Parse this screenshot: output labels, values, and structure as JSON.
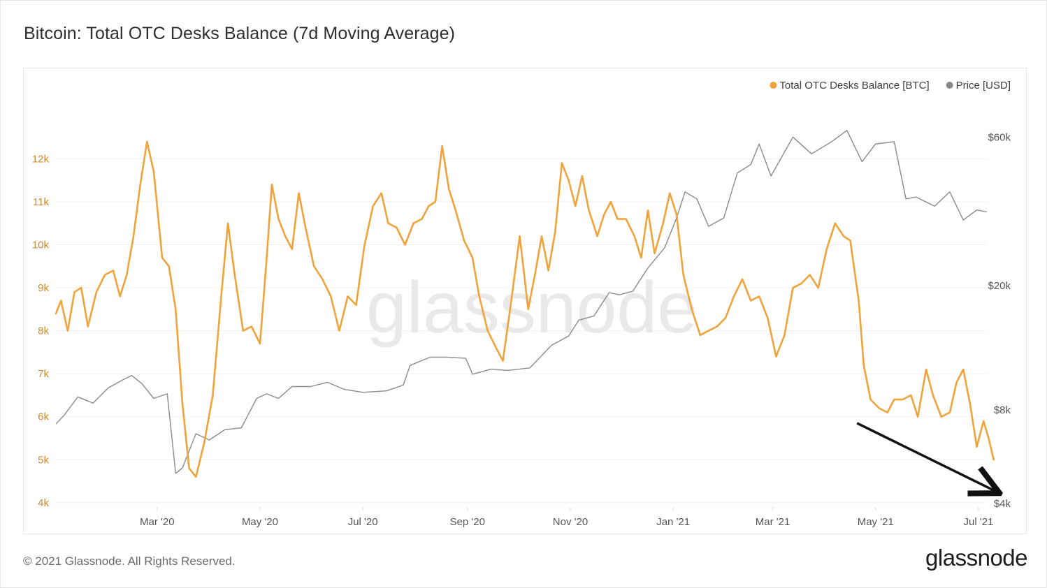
{
  "title": "Bitcoin: Total OTC Desks Balance (7d Moving Average)",
  "footer": "© 2021 Glassnode. All Rights Reserved.",
  "brand": "glassnode",
  "watermark": "glassnode",
  "colors": {
    "otc": "#f0a33a",
    "price": "#8a8a8a",
    "arrow": "#111111"
  },
  "chart_data": {
    "type": "line",
    "legend_position": "top-right",
    "grid": true,
    "x_tick_labels": [
      "Mar '20",
      "May '20",
      "Jul '20",
      "Sep '20",
      "Nov '20",
      "Jan '21",
      "Mar '21",
      "May '21",
      "Jul '21"
    ],
    "x_tick_dates": [
      "2020-03-01",
      "2020-05-01",
      "2020-07-01",
      "2020-09-01",
      "2020-11-01",
      "2021-01-01",
      "2021-03-01",
      "2021-05-01",
      "2021-07-01"
    ],
    "x_range": [
      "2020-01-01",
      "2021-07-06"
    ],
    "left_axis": {
      "ticks": [
        4000,
        5000,
        6000,
        7000,
        8000,
        9000,
        10000,
        11000,
        12000
      ],
      "tick_labels": [
        "4k",
        "5k",
        "6k",
        "7k",
        "8k",
        "9k",
        "10k",
        "11k",
        "12k"
      ],
      "range": [
        3900,
        12900
      ]
    },
    "right_axis": {
      "scale": "log",
      "ticks": [
        4000,
        8000,
        20000,
        60000
      ],
      "tick_labels": [
        "$4k",
        "$8k",
        "$20k",
        "$60k"
      ],
      "range": [
        3900,
        68000
      ]
    },
    "series": [
      {
        "name": "Total OTC Desks Balance [BTC]",
        "axis": "left",
        "points": [
          [
            "2020-01-01",
            8400
          ],
          [
            "2020-01-04",
            8700
          ],
          [
            "2020-01-08",
            8000
          ],
          [
            "2020-01-12",
            8900
          ],
          [
            "2020-01-16",
            9000
          ],
          [
            "2020-01-20",
            8100
          ],
          [
            "2020-01-25",
            8900
          ],
          [
            "2020-01-30",
            9300
          ],
          [
            "2020-02-04",
            9400
          ],
          [
            "2020-02-08",
            8800
          ],
          [
            "2020-02-12",
            9300
          ],
          [
            "2020-02-16",
            10200
          ],
          [
            "2020-02-20",
            11400
          ],
          [
            "2020-02-24",
            12400
          ],
          [
            "2020-02-28",
            11700
          ],
          [
            "2020-03-04",
            9700
          ],
          [
            "2020-03-08",
            9500
          ],
          [
            "2020-03-12",
            8500
          ],
          [
            "2020-03-16",
            6300
          ],
          [
            "2020-03-20",
            4800
          ],
          [
            "2020-03-24",
            4600
          ],
          [
            "2020-03-29",
            5400
          ],
          [
            "2020-04-03",
            6500
          ],
          [
            "2020-04-08",
            8800
          ],
          [
            "2020-04-12",
            10500
          ],
          [
            "2020-04-16",
            9300
          ],
          [
            "2020-04-21",
            8000
          ],
          [
            "2020-04-26",
            8100
          ],
          [
            "2020-05-01",
            7700
          ],
          [
            "2020-05-05",
            9700
          ],
          [
            "2020-05-08",
            11400
          ],
          [
            "2020-05-12",
            10600
          ],
          [
            "2020-05-16",
            10200
          ],
          [
            "2020-05-20",
            9900
          ],
          [
            "2020-05-24",
            11200
          ],
          [
            "2020-05-28",
            10400
          ],
          [
            "2020-06-02",
            9500
          ],
          [
            "2020-06-07",
            9200
          ],
          [
            "2020-06-12",
            8800
          ],
          [
            "2020-06-17",
            8000
          ],
          [
            "2020-06-22",
            8800
          ],
          [
            "2020-06-27",
            8600
          ],
          [
            "2020-07-02",
            10000
          ],
          [
            "2020-07-07",
            10900
          ],
          [
            "2020-07-12",
            11200
          ],
          [
            "2020-07-16",
            10500
          ],
          [
            "2020-07-21",
            10400
          ],
          [
            "2020-07-26",
            10000
          ],
          [
            "2020-07-31",
            10500
          ],
          [
            "2020-08-05",
            10600
          ],
          [
            "2020-08-09",
            10900
          ],
          [
            "2020-08-13",
            11000
          ],
          [
            "2020-08-17",
            12300
          ],
          [
            "2020-08-21",
            11300
          ],
          [
            "2020-08-25",
            10800
          ],
          [
            "2020-08-30",
            10100
          ],
          [
            "2020-09-04",
            9700
          ],
          [
            "2020-09-08",
            8800
          ],
          [
            "2020-09-13",
            8000
          ],
          [
            "2020-09-18",
            7600
          ],
          [
            "2020-09-22",
            7300
          ],
          [
            "2020-09-27",
            8700
          ],
          [
            "2020-10-02",
            10200
          ],
          [
            "2020-10-07",
            8500
          ],
          [
            "2020-10-11",
            9300
          ],
          [
            "2020-10-15",
            10200
          ],
          [
            "2020-10-19",
            9400
          ],
          [
            "2020-10-23",
            10300
          ],
          [
            "2020-10-27",
            11900
          ],
          [
            "2020-10-31",
            11500
          ],
          [
            "2020-11-04",
            10900
          ],
          [
            "2020-11-08",
            11600
          ],
          [
            "2020-11-12",
            10800
          ],
          [
            "2020-11-17",
            10200
          ],
          [
            "2020-11-21",
            10700
          ],
          [
            "2020-11-25",
            11000
          ],
          [
            "2020-11-29",
            10600
          ],
          [
            "2020-12-04",
            10600
          ],
          [
            "2020-12-09",
            10200
          ],
          [
            "2020-12-13",
            9700
          ],
          [
            "2020-12-17",
            10800
          ],
          [
            "2020-12-21",
            9800
          ],
          [
            "2020-12-26",
            10500
          ],
          [
            "2020-12-30",
            11200
          ],
          [
            "2021-01-03",
            10700
          ],
          [
            "2021-01-07",
            9300
          ],
          [
            "2021-01-12",
            8500
          ],
          [
            "2021-01-17",
            7900
          ],
          [
            "2021-01-22",
            8000
          ],
          [
            "2021-01-27",
            8100
          ],
          [
            "2021-02-01",
            8300
          ],
          [
            "2021-02-06",
            8800
          ],
          [
            "2021-02-11",
            9200
          ],
          [
            "2021-02-16",
            8700
          ],
          [
            "2021-02-21",
            8800
          ],
          [
            "2021-02-26",
            8300
          ],
          [
            "2021-03-03",
            7400
          ],
          [
            "2021-03-08",
            7900
          ],
          [
            "2021-03-13",
            9000
          ],
          [
            "2021-03-18",
            9100
          ],
          [
            "2021-03-23",
            9300
          ],
          [
            "2021-03-28",
            9000
          ],
          [
            "2021-04-02",
            9900
          ],
          [
            "2021-04-07",
            10500
          ],
          [
            "2021-04-12",
            10200
          ],
          [
            "2021-04-16",
            10100
          ],
          [
            "2021-04-21",
            8700
          ],
          [
            "2021-04-24",
            7200
          ],
          [
            "2021-04-28",
            6400
          ],
          [
            "2021-05-03",
            6200
          ],
          [
            "2021-05-08",
            6100
          ],
          [
            "2021-05-12",
            6400
          ],
          [
            "2021-05-17",
            6400
          ],
          [
            "2021-05-22",
            6500
          ],
          [
            "2021-05-26",
            6000
          ],
          [
            "2021-05-31",
            7100
          ],
          [
            "2021-06-04",
            6500
          ],
          [
            "2021-06-09",
            6000
          ],
          [
            "2021-06-14",
            6100
          ],
          [
            "2021-06-18",
            6800
          ],
          [
            "2021-06-22",
            7100
          ],
          [
            "2021-06-26",
            6300
          ],
          [
            "2021-06-30",
            5300
          ],
          [
            "2021-07-04",
            5900
          ],
          [
            "2021-07-07",
            5500
          ],
          [
            "2021-07-10",
            5000
          ]
        ]
      },
      {
        "name": "Price [USD]",
        "axis": "right",
        "points": [
          [
            "2020-01-01",
            7200
          ],
          [
            "2020-01-06",
            7700
          ],
          [
            "2020-01-14",
            8800
          ],
          [
            "2020-01-23",
            8400
          ],
          [
            "2020-02-01",
            9400
          ],
          [
            "2020-02-10",
            10000
          ],
          [
            "2020-02-15",
            10300
          ],
          [
            "2020-02-21",
            9700
          ],
          [
            "2020-02-28",
            8700
          ],
          [
            "2020-03-07",
            9000
          ],
          [
            "2020-03-12",
            5000
          ],
          [
            "2020-03-16",
            5200
          ],
          [
            "2020-03-24",
            6700
          ],
          [
            "2020-04-01",
            6400
          ],
          [
            "2020-04-10",
            6900
          ],
          [
            "2020-04-20",
            7000
          ],
          [
            "2020-04-29",
            8700
          ],
          [
            "2020-05-05",
            9000
          ],
          [
            "2020-05-12",
            8700
          ],
          [
            "2020-05-20",
            9500
          ],
          [
            "2020-05-31",
            9500
          ],
          [
            "2020-06-10",
            9800
          ],
          [
            "2020-06-20",
            9300
          ],
          [
            "2020-07-01",
            9100
          ],
          [
            "2020-07-15",
            9200
          ],
          [
            "2020-07-25",
            9600
          ],
          [
            "2020-07-29",
            11100
          ],
          [
            "2020-08-10",
            11800
          ],
          [
            "2020-08-20",
            11800
          ],
          [
            "2020-08-31",
            11700
          ],
          [
            "2020-09-04",
            10400
          ],
          [
            "2020-09-15",
            10800
          ],
          [
            "2020-09-25",
            10700
          ],
          [
            "2020-10-08",
            10900
          ],
          [
            "2020-10-21",
            12900
          ],
          [
            "2020-10-31",
            13800
          ],
          [
            "2020-11-06",
            15500
          ],
          [
            "2020-11-15",
            16000
          ],
          [
            "2020-11-24",
            19000
          ],
          [
            "2020-11-30",
            18700
          ],
          [
            "2020-12-08",
            19200
          ],
          [
            "2020-12-17",
            22800
          ],
          [
            "2020-12-27",
            26500
          ],
          [
            "2021-01-03",
            33000
          ],
          [
            "2021-01-08",
            40000
          ],
          [
            "2021-01-15",
            38000
          ],
          [
            "2021-01-22",
            31000
          ],
          [
            "2021-01-31",
            33000
          ],
          [
            "2021-02-08",
            46000
          ],
          [
            "2021-02-16",
            49000
          ],
          [
            "2021-02-21",
            57000
          ],
          [
            "2021-02-28",
            45000
          ],
          [
            "2021-03-13",
            60000
          ],
          [
            "2021-03-24",
            53000
          ],
          [
            "2021-04-05",
            58000
          ],
          [
            "2021-04-14",
            63000
          ],
          [
            "2021-04-23",
            50000
          ],
          [
            "2021-05-01",
            57000
          ],
          [
            "2021-05-12",
            58000
          ],
          [
            "2021-05-19",
            38000
          ],
          [
            "2021-05-25",
            38500
          ],
          [
            "2021-06-05",
            36000
          ],
          [
            "2021-06-14",
            40000
          ],
          [
            "2021-06-22",
            32500
          ],
          [
            "2021-06-30",
            35000
          ],
          [
            "2021-07-06",
            34500
          ]
        ]
      }
    ],
    "annotations": [
      {
        "type": "arrow",
        "description": "downtrend arrow",
        "from": [
          "2021-04-20",
          5850
        ],
        "to": [
          "2021-07-12",
          4250
        ]
      }
    ]
  }
}
